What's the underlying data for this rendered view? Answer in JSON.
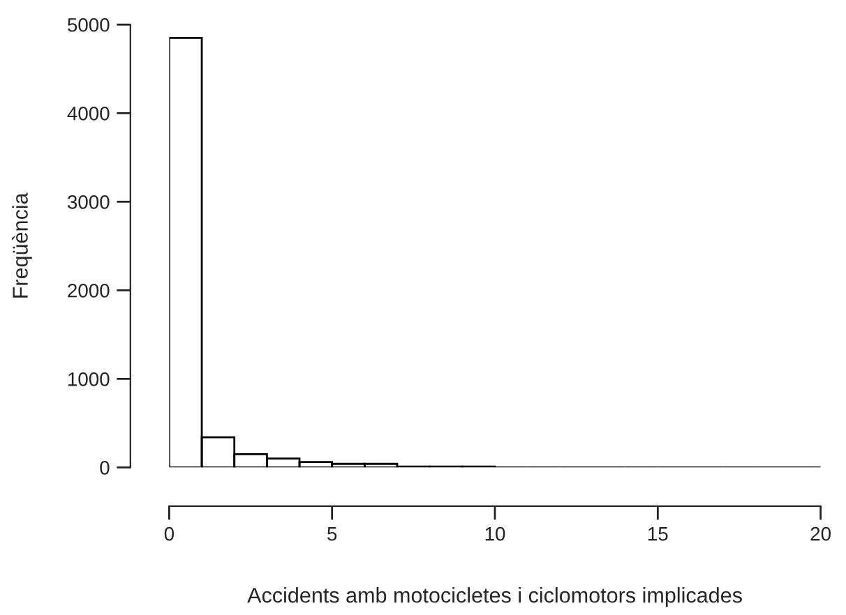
{
  "chart_data": {
    "type": "histogram",
    "xlabel": "Accidents amb motocicletes i ciclomotors implicades",
    "ylabel": "Freqüència",
    "bins": [
      0,
      1,
      2,
      3,
      4,
      5,
      6,
      7,
      8,
      9,
      10,
      11,
      12,
      13,
      14,
      15,
      16,
      17,
      18,
      19,
      20
    ],
    "values": [
      4850,
      340,
      150,
      100,
      60,
      40,
      40,
      10,
      10,
      10,
      0,
      0,
      0,
      0,
      0,
      0,
      0,
      0,
      0,
      0
    ],
    "xlim": [
      0,
      20
    ],
    "ylim": [
      0,
      5000
    ],
    "xticks": [
      0,
      5,
      10,
      15,
      20
    ],
    "yticks": [
      0,
      1000,
      2000,
      3000,
      4000,
      5000
    ],
    "grid": false
  }
}
